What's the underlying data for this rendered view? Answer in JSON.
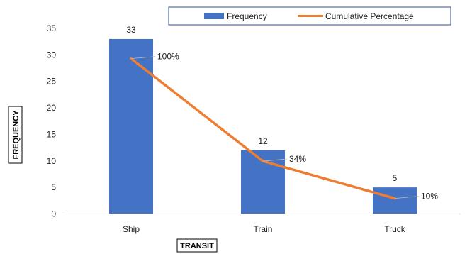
{
  "chart_data": {
    "type": "bar",
    "categories": [
      "Ship",
      "Train",
      "Truck"
    ],
    "series": [
      {
        "name": "Frequency",
        "type": "bar",
        "values": [
          33,
          12,
          5
        ],
        "color": "#4472C4"
      },
      {
        "name": "Cumulative Percentage",
        "type": "line",
        "values_pct": [
          100,
          34,
          10
        ],
        "value_labels": [
          "100%",
          "34%",
          "10%"
        ],
        "color": "#ED7D31"
      }
    ],
    "xlabel": "TRANSIT",
    "ylabel": "FREQUENCY",
    "ylim": [
      0,
      35
    ],
    "yticks": [
      0,
      5,
      10,
      15,
      20,
      25,
      30,
      35
    ],
    "grid": false,
    "legend_position": "top-right"
  }
}
